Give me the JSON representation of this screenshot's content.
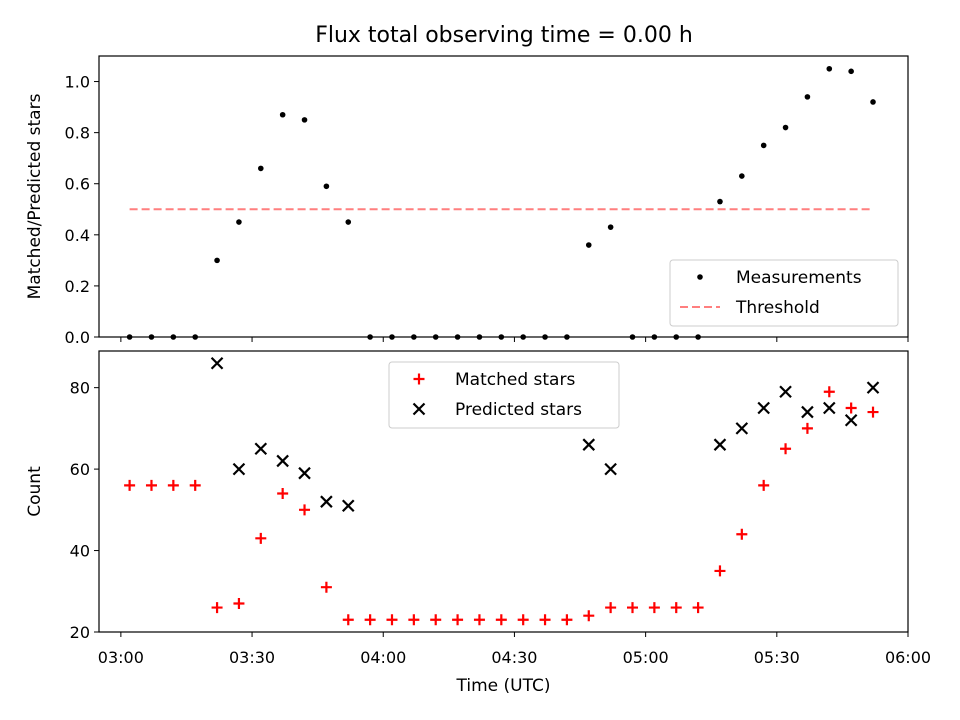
{
  "chart_data": [
    {
      "type": "scatter",
      "title": "Flux total observing time = 0.00 h",
      "xlabel": "",
      "ylabel": "Matched/Predicted stars",
      "xlim": [
        "02:55",
        "06:00"
      ],
      "ylim": [
        0,
        1.1
      ],
      "legend": "lower-right",
      "x_ticks": [
        "03:00",
        "03:30",
        "04:00",
        "04:30",
        "05:00",
        "05:30",
        "06:00"
      ],
      "y_ticks": [
        "0.0",
        "0.2",
        "0.4",
        "0.6",
        "0.8",
        "1.0"
      ],
      "series": [
        {
          "name": "Measurements",
          "marker": "dot",
          "color": "#000000",
          "x": [
            "03:02",
            "03:07",
            "03:12",
            "03:17",
            "03:22",
            "03:27",
            "03:32",
            "03:37",
            "03:42",
            "03:47",
            "03:52",
            "03:57",
            "04:02",
            "04:07",
            "04:12",
            "04:17",
            "04:22",
            "04:27",
            "04:32",
            "04:37",
            "04:42",
            "04:47",
            "04:52",
            "04:57",
            "05:02",
            "05:07",
            "05:12",
            "05:17",
            "05:22",
            "05:27",
            "05:32",
            "05:37",
            "05:42",
            "05:47",
            "05:52"
          ],
          "y": [
            0,
            0,
            0,
            0,
            0.3,
            0.45,
            0.66,
            0.87,
            0.85,
            0.59,
            0.45,
            0,
            0,
            0,
            0,
            0,
            0,
            0,
            0,
            0,
            0,
            0.36,
            0.43,
            0,
            0,
            0,
            0,
            0.53,
            0.63,
            0.75,
            0.82,
            0.94,
            1.05,
            1.04,
            0.92
          ]
        },
        {
          "name": "Threshold",
          "marker": "dashed-line",
          "color": "#ff7f7f",
          "x": [
            "03:02",
            "05:52"
          ],
          "y": [
            0.5,
            0.5
          ]
        }
      ]
    },
    {
      "type": "scatter",
      "title": "",
      "xlabel": "Time (UTC)",
      "ylabel": "Count",
      "xlim": [
        "02:55",
        "06:00"
      ],
      "ylim": [
        20,
        89
      ],
      "legend": "top-center",
      "x_ticks": [
        "03:00",
        "03:30",
        "04:00",
        "04:30",
        "05:00",
        "05:30",
        "06:00"
      ],
      "y_ticks": [
        "20",
        "40",
        "60",
        "80"
      ],
      "series": [
        {
          "name": "Matched stars",
          "marker": "plus",
          "color": "#ff0000",
          "x": [
            "03:02",
            "03:07",
            "03:12",
            "03:17",
            "03:22",
            "03:27",
            "03:32",
            "03:37",
            "03:42",
            "03:47",
            "03:52",
            "03:57",
            "04:02",
            "04:07",
            "04:12",
            "04:17",
            "04:22",
            "04:27",
            "04:32",
            "04:37",
            "04:42",
            "04:47",
            "04:52",
            "04:57",
            "05:02",
            "05:07",
            "05:12",
            "05:17",
            "05:22",
            "05:27",
            "05:32",
            "05:37",
            "05:42",
            "05:47",
            "05:52"
          ],
          "y": [
            56,
            56,
            56,
            56,
            26,
            27,
            43,
            54,
            50,
            31,
            23,
            23,
            23,
            23,
            23,
            23,
            23,
            23,
            23,
            23,
            23,
            24,
            26,
            26,
            26,
            26,
            26,
            35,
            44,
            56,
            65,
            70,
            79,
            75,
            74
          ]
        },
        {
          "name": "Predicted stars",
          "marker": "x",
          "color": "#000000",
          "x": [
            "03:22",
            "03:27",
            "03:32",
            "03:37",
            "03:42",
            "03:47",
            "03:52",
            "04:47",
            "04:52",
            "05:17",
            "05:22",
            "05:27",
            "05:32",
            "05:37",
            "05:42",
            "05:47",
            "05:52"
          ],
          "y": [
            86,
            60,
            65,
            62,
            59,
            52,
            51,
            66,
            60,
            66,
            70,
            75,
            79,
            74,
            75,
            72,
            80
          ]
        }
      ]
    }
  ]
}
